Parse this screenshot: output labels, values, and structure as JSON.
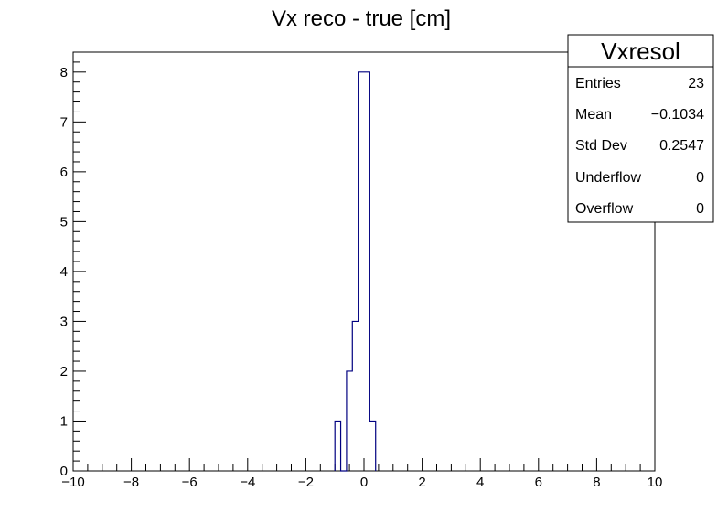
{
  "chart_data": {
    "type": "bar",
    "title": "Vx reco - true [cm]",
    "xlabel": "",
    "ylabel": "",
    "xlim": [
      -10,
      10
    ],
    "ylim": [
      0,
      8.4
    ],
    "bin_width": 0.2,
    "bins": [
      {
        "x0": -1.0,
        "x1": -0.8,
        "value": 1
      },
      {
        "x0": -0.8,
        "x1": -0.6,
        "value": 0
      },
      {
        "x0": -0.6,
        "x1": -0.4,
        "value": 2
      },
      {
        "x0": -0.4,
        "x1": -0.2,
        "value": 3
      },
      {
        "x0": -0.2,
        "x1": 0.0,
        "value": 8
      },
      {
        "x0": 0.0,
        "x1": 0.2,
        "value": 8
      },
      {
        "x0": 0.2,
        "x1": 0.4,
        "value": 1
      }
    ],
    "x_ticks": [
      "−10",
      "−8",
      "−6",
      "−4",
      "−2",
      "0",
      "2",
      "4",
      "6",
      "8",
      "10"
    ],
    "y_ticks": [
      "0",
      "1",
      "2",
      "3",
      "4",
      "5",
      "6",
      "7",
      "8"
    ],
    "line_color": "#000080",
    "grid": false,
    "legend": "none"
  },
  "stats": {
    "name": "Vxresol",
    "rows": [
      {
        "label": "Entries",
        "value": "23"
      },
      {
        "label": "Mean",
        "value": "−0.1034"
      },
      {
        "label": "Std Dev",
        "value": "0.2547"
      },
      {
        "label": "Underflow",
        "value": "0"
      },
      {
        "label": "Overflow",
        "value": "0"
      }
    ]
  }
}
